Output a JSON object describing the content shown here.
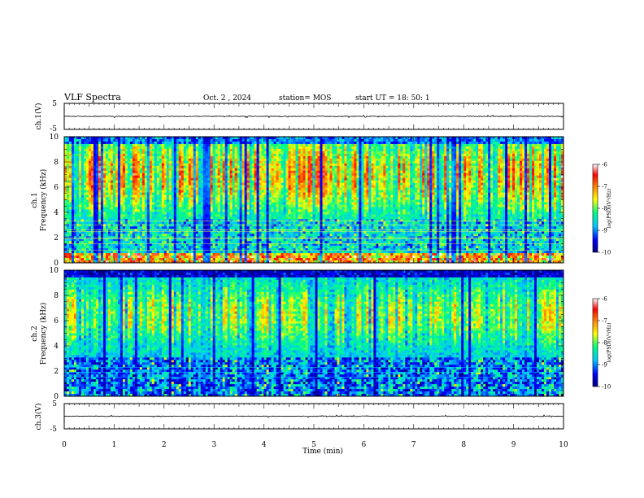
{
  "header": {
    "title": "VLF Spectra",
    "date": "Oct. 2 , 2024",
    "station": "station= MOS",
    "start_time": "start UT = 18: 50: 1"
  },
  "chart_data": [
    {
      "type": "line",
      "panel": "ch1-waveform",
      "ylabel": "ch.1(V)",
      "ylim": [
        -5,
        5
      ],
      "yticks": [
        "5",
        "-5"
      ],
      "baseline": 0
    },
    {
      "type": "heatmap",
      "panel": "ch1-spectrogram",
      "ylabel": "ch.1",
      "ylabel2": "Frequency (kHz)",
      "ylim": [
        0,
        10
      ],
      "yticks": [
        "0",
        "2",
        "4",
        "6",
        "8",
        "10"
      ],
      "colorbar": {
        "label": "log(PSD)(V²/Hz)",
        "range": [
          -10,
          -6
        ],
        "ticks": [
          "-6",
          "-7",
          "-8",
          "-9",
          "-10"
        ]
      }
    },
    {
      "type": "heatmap",
      "panel": "ch2-spectrogram",
      "ylabel": "ch.2",
      "ylabel2": "Frequency (kHz)",
      "ylim": [
        0,
        10
      ],
      "yticks": [
        "0",
        "2",
        "4",
        "6",
        "8",
        "10"
      ],
      "colorbar": {
        "label": "log(PSD)(V²/Hz)",
        "range": [
          -10,
          -6
        ],
        "ticks": [
          "-6",
          "-7",
          "-8",
          "-9",
          "-10"
        ]
      }
    },
    {
      "type": "line",
      "panel": "ch3-waveform",
      "ylabel": "ch.3(V)",
      "ylim": [
        -5,
        5
      ],
      "yticks": [
        "5",
        "-5"
      ],
      "baseline": 0
    }
  ],
  "x_axis": {
    "label": "Time (min)",
    "xlim": [
      0,
      10
    ],
    "ticks": [
      "0",
      "1",
      "2",
      "3",
      "4",
      "5",
      "6",
      "7",
      "8",
      "9",
      "10"
    ]
  },
  "colors": {
    "colormap": [
      "#000080",
      "#0000ff",
      "#00c8ff",
      "#00ff80",
      "#ffff00",
      "#ff8000",
      "#ff0000",
      "#ffffff"
    ],
    "trace": "#000000"
  }
}
